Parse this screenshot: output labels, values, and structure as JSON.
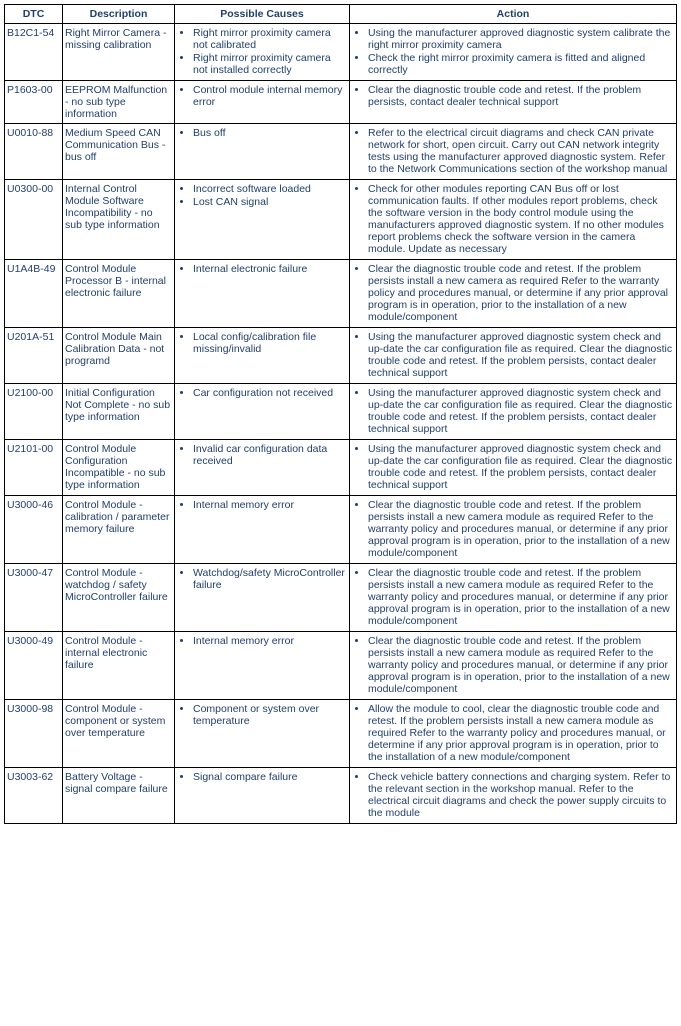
{
  "headers": {
    "dtc": "DTC",
    "description": "Description",
    "causes": "Possible Causes",
    "action": "Action"
  },
  "rows": [
    {
      "dtc": "B12C1-54",
      "description": "Right Mirror Camera - missing calibration",
      "causes": [
        "Right mirror proximity camera not calibrated",
        "Right mirror proximity camera not installed correctly"
      ],
      "actions": [
        "Using the manufacturer approved diagnostic system calibrate the right mirror proximity camera",
        "Check the right mirror proximity camera is fitted and aligned correctly"
      ]
    },
    {
      "dtc": "P1603-00",
      "description": "EEPROM Malfunction - no sub type information",
      "causes": [
        "Control module internal memory error"
      ],
      "actions": [
        "Clear the diagnostic trouble code and retest. If the problem persists, contact dealer technical support"
      ]
    },
    {
      "dtc": "U0010-88",
      "description": "Medium Speed CAN Communication Bus - bus off",
      "causes": [
        "Bus off"
      ],
      "actions": [
        "Refer to the electrical circuit diagrams and check CAN private network for short, open circuit. Carry out CAN network integrity tests using the manufacturer approved diagnostic system. Refer to the Network Communications section of the workshop manual"
      ]
    },
    {
      "dtc": "U0300-00",
      "description": "Internal Control Module Software Incompatibility - no sub type information",
      "causes": [
        "Incorrect software loaded",
        "Lost CAN signal"
      ],
      "actions": [
        "Check for other modules reporting CAN Bus off or lost communication faults. If other modules report problems, check the software version in the body control module using the manufacturers approved diagnostic system. If no other modules report problems check the software version in the camera module. Update as necessary"
      ]
    },
    {
      "dtc": "U1A4B-49",
      "description": "Control Module Processor B - internal electronic failure",
      "causes": [
        "Internal electronic failure"
      ],
      "actions": [
        "Clear the diagnostic trouble code and retest. If the problem persists install a new camera as required Refer to the warranty policy and procedures manual, or determine if any prior approval program is in operation, prior to the installation of a new module/component"
      ]
    },
    {
      "dtc": "U201A-51",
      "description": "Control Module Main Calibration Data - not programd",
      "causes": [
        "Local config/calibration file missing/invalid"
      ],
      "actions": [
        "Using the manufacturer approved diagnostic system check and up-date the car configuration file as required. Clear the diagnostic trouble code and retest. If the problem persists, contact dealer technical support"
      ]
    },
    {
      "dtc": "U2100-00",
      "description": "Initial Configuration Not Complete - no sub type information",
      "causes": [
        "Car configuration not received"
      ],
      "actions": [
        "Using the manufacturer approved diagnostic system check and up-date the car configuration file as required. Clear the diagnostic trouble code and retest. If the problem persists, contact dealer technical support"
      ]
    },
    {
      "dtc": "U2101-00",
      "description": "Control Module Configuration Incompatible - no sub type information",
      "causes": [
        "Invalid car configuration data received"
      ],
      "actions": [
        "Using the manufacturer approved diagnostic system check and up-date the car configuration file as required. Clear the diagnostic trouble code and retest. If the problem persists, contact dealer technical support"
      ]
    },
    {
      "dtc": "U3000-46",
      "description": "Control Module - calibration / parameter memory failure",
      "causes": [
        "Internal memory error"
      ],
      "actions": [
        "Clear the diagnostic trouble code and retest. If the problem persists install a new camera module as required Refer to the warranty policy and procedures manual, or determine if any prior approval program is in operation, prior to the installation of a new module/component"
      ]
    },
    {
      "dtc": "U3000-47",
      "description": "Control Module - watchdog / safety MicroController failure",
      "causes": [
        "Watchdog/safety MicroController failure"
      ],
      "actions": [
        "Clear the diagnostic trouble code and retest. If the problem persists install a new camera module as required Refer to the warranty policy and procedures manual, or determine if any prior approval program is in operation, prior to the installation of a new module/component"
      ]
    },
    {
      "dtc": "U3000-49",
      "description": "Control Module - internal electronic failure",
      "causes": [
        "Internal memory error"
      ],
      "actions": [
        "Clear the diagnostic trouble code and retest. If the problem persists install a new camera module as required Refer to the warranty policy and procedures manual, or determine if any prior approval program is in operation, prior to the installation of a new module/component"
      ]
    },
    {
      "dtc": "U3000-98",
      "description": "Control Module - component or system over temperature",
      "causes": [
        "Component or system over temperature"
      ],
      "actions": [
        "Allow the module to cool, clear the diagnostic trouble code and retest. If the problem persists install a new camera module as required Refer to the warranty policy and procedures manual, or determine if any prior approval program is in operation, prior to the installation of a new module/component"
      ]
    },
    {
      "dtc": "U3003-62",
      "description": "Battery Voltage - signal compare failure",
      "causes": [
        "Signal compare failure"
      ],
      "actions": [
        "Check vehicle battery connections and charging system. Refer to the relevant section in the workshop manual. Refer to the electrical circuit diagrams and check the power supply circuits to the module"
      ]
    }
  ]
}
